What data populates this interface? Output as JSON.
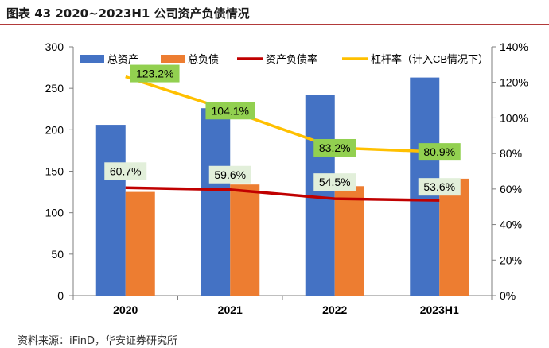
{
  "figure": {
    "title": "图表 43 2020~2023H1 公司资产负债情况",
    "source": "资料来源：iFinD，华安证券研究所"
  },
  "chart_data": {
    "type": "bar",
    "categories": [
      "2020",
      "2021",
      "2022",
      "2023H1"
    ],
    "series": [
      {
        "name": "总资产",
        "kind": "bar",
        "axis": "left",
        "color": "#4472c4",
        "values": [
          206,
          226,
          242,
          263
        ]
      },
      {
        "name": "总负债",
        "kind": "bar",
        "axis": "left",
        "color": "#ed7d31",
        "values": [
          125,
          134,
          132,
          141
        ]
      },
      {
        "name": "资产负债率",
        "kind": "line",
        "axis": "right",
        "color": "#c00000",
        "values": [
          60.7,
          59.6,
          54.5,
          53.6
        ],
        "labels": [
          "60.7%",
          "59.6%",
          "54.5%",
          "53.6%"
        ]
      },
      {
        "name": "杠杆率（计入CB情况下）",
        "kind": "line",
        "axis": "right",
        "color": "#ffc000",
        "values": [
          123.2,
          104.1,
          83.2,
          80.9
        ],
        "labels": [
          "123.2%",
          "104.1%",
          "83.2%",
          "80.9%"
        ]
      }
    ],
    "y_left": {
      "range": [
        0,
        300
      ],
      "ticks": [
        "0",
        "50",
        "100",
        "150",
        "200",
        "250",
        "300"
      ]
    },
    "y_right": {
      "range": [
        0,
        140
      ],
      "ticks": [
        "0%",
        "20%",
        "40%",
        "60%",
        "80%",
        "100%",
        "120%",
        "140%"
      ]
    },
    "legend": "top",
    "grid": false,
    "colors": {
      "debt_ratio_label_bg": "#e2efda",
      "leverage_label_bg": "#92d050"
    }
  }
}
